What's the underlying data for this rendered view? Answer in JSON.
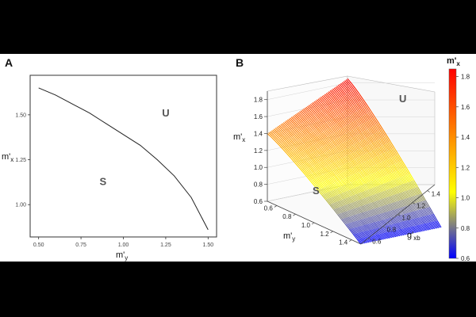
{
  "chart_data": [
    {
      "panel": "A",
      "type": "line",
      "xlabel": "m'",
      "xlabel_sub": "y",
      "ylabel": "m'",
      "ylabel_sub": "x",
      "xlim": [
        0.45,
        1.55
      ],
      "ylim": [
        0.82,
        1.72
      ],
      "xticks": [
        "0.50",
        "0.75",
        "1.00",
        "1.25",
        "1.50"
      ],
      "yticks": [
        "1.00",
        "1.25",
        "1.50"
      ],
      "x": [
        0.5,
        0.6,
        0.7,
        0.8,
        0.9,
        1.0,
        1.1,
        1.2,
        1.3,
        1.4,
        1.5
      ],
      "y": [
        1.65,
        1.61,
        1.56,
        1.51,
        1.45,
        1.39,
        1.33,
        1.25,
        1.16,
        1.04,
        0.86
      ],
      "annotations": [
        {
          "text": "U",
          "x": 1.25,
          "y": 1.49
        },
        {
          "text": "S",
          "x": 0.88,
          "y": 1.11
        }
      ],
      "grid": false
    },
    {
      "panel": "B",
      "type": "surface3d",
      "xlabel": "m'",
      "xlabel_sub": "y",
      "ylabel": "g'",
      "ylabel_sub": "xb",
      "zlabel": "m'",
      "zlabel_sub": "x",
      "x_range": [
        0.5,
        1.5
      ],
      "y_range": [
        0.5,
        1.5
      ],
      "zlim": [
        0.6,
        1.9
      ],
      "xticks": [
        "0.6",
        "0.8",
        "1.0",
        "1.2",
        "1.4"
      ],
      "yticks": [
        "0.6",
        "0.8",
        "1.0",
        "1.2",
        "1.4"
      ],
      "zticks": [
        "0.6",
        "0.8",
        "1.0",
        "1.2",
        "1.4",
        "1.6",
        "1.8"
      ],
      "surface_corners": {
        "low_my_low_g": 1.4,
        "high_my_low_g": 0.6,
        "low_my_high_g": 1.85,
        "high_my_high_g": 0.6
      },
      "annotations": [
        {
          "text": "U"
        },
        {
          "text": "S"
        }
      ],
      "colorbar": {
        "title": "m'",
        "title_sub": "x",
        "ticks": [
          "0.6",
          "0.8",
          "1.0",
          "1.2",
          "1.4",
          "1.6",
          "1.8"
        ],
        "range": [
          0.6,
          1.85
        ],
        "colors": [
          "#0000ff",
          "#ffff00",
          "#ff0000"
        ]
      }
    }
  ]
}
